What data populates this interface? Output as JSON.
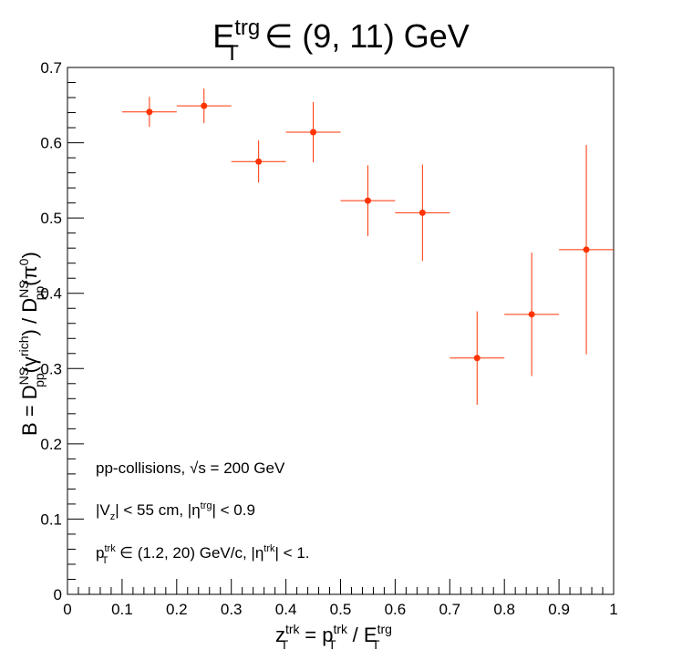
{
  "chart_data": {
    "type": "scatter",
    "title_main": "E",
    "title_sup": "trg",
    "title_sub": "T",
    "title_rest": " ∈ (9, 11) GeV",
    "xlabel": {
      "z": "z",
      "z_sup": "trk",
      "z_sub": "T",
      "eq": " = p",
      "p_sup": "trk",
      "p_sub": "T",
      "div": " / E",
      "e_sup": "trg",
      "e_sub": "T"
    },
    "ylabel": {
      "part1": "B = D",
      "d1_sup": "NS",
      "d1_sub": "pp",
      "part2": "(γ",
      "g_sup": "rich",
      "part3": ") / D",
      "d2_sup": "NS",
      "d2_sub": "pp",
      "part4": "(π",
      "pi_sup": "0",
      "part5": ")"
    },
    "xlim": [
      0,
      1
    ],
    "ylim": [
      0,
      0.7
    ],
    "x_ticks": [
      "0",
      "0.1",
      "0.2",
      "0.3",
      "0.4",
      "0.5",
      "0.6",
      "0.7",
      "0.8",
      "0.9",
      "1"
    ],
    "y_ticks": [
      "0",
      "0.1",
      "0.2",
      "0.3",
      "0.4",
      "0.5",
      "0.6",
      "0.7"
    ],
    "color": "#ff3300",
    "points": [
      {
        "x": 0.15,
        "xerr": 0.05,
        "y": 0.641,
        "yerr_low": 0.02,
        "yerr_high": 0.02
      },
      {
        "x": 0.25,
        "xerr": 0.05,
        "y": 0.649,
        "yerr_low": 0.023,
        "yerr_high": 0.023
      },
      {
        "x": 0.35,
        "xerr": 0.05,
        "y": 0.575,
        "yerr_low": 0.028,
        "yerr_high": 0.028
      },
      {
        "x": 0.45,
        "xerr": 0.05,
        "y": 0.614,
        "yerr_low": 0.04,
        "yerr_high": 0.04
      },
      {
        "x": 0.55,
        "xerr": 0.05,
        "y": 0.523,
        "yerr_low": 0.047,
        "yerr_high": 0.047
      },
      {
        "x": 0.65,
        "xerr": 0.05,
        "y": 0.507,
        "yerr_low": 0.064,
        "yerr_high": 0.064
      },
      {
        "x": 0.75,
        "xerr": 0.05,
        "y": 0.314,
        "yerr_low": 0.062,
        "yerr_high": 0.062
      },
      {
        "x": 0.85,
        "xerr": 0.05,
        "y": 0.372,
        "yerr_low": 0.082,
        "yerr_high": 0.082
      },
      {
        "x": 0.95,
        "xerr": 0.05,
        "y": 0.458,
        "yerr_low": 0.139,
        "yerr_high": 0.139
      }
    ],
    "annotations": {
      "line1": "pp-collisions, √s = 200 GeV",
      "line2_a": "|V",
      "line2_a_sub": "z",
      "line2_b": "| < 55 cm, |η",
      "line2_b_sup": "trg",
      "line2_c": "| < 0.9",
      "line3_a": "p",
      "line3_a_sup": "trk",
      "line3_a_sub": "T",
      "line3_b": " ∈ (1.2, 20) GeV/c, |η",
      "line3_b_sup": "trk",
      "line3_c": "| < 1."
    }
  }
}
